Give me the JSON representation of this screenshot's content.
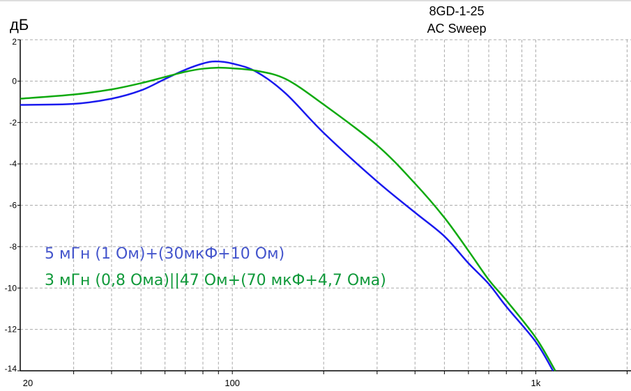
{
  "chart_data": {
    "type": "line",
    "title": "8GD-1-25",
    "subtitle": "AC Sweep",
    "ylabel": "дБ",
    "xlabel": "",
    "xscale": "log",
    "xlim": [
      20,
      2060
    ],
    "ylim": [
      -14,
      2
    ],
    "grid": true,
    "x_ticks": [
      {
        "v": 20,
        "label": "20"
      },
      {
        "v": 100,
        "label": "100"
      },
      {
        "v": 1000,
        "label": "1k"
      }
    ],
    "y_ticks": [
      2,
      0,
      -2,
      -4,
      -6,
      -8,
      -10,
      -12,
      -14
    ],
    "series": [
      {
        "name": "5 мГн (1 Ом)+(30мкФ+10 Ом)",
        "color": "#1a1aee",
        "label_color": "#4455cc",
        "x": [
          20,
          30,
          40,
          50,
          60,
          70,
          80,
          88,
          100,
          120,
          150,
          200,
          300,
          400,
          500,
          600,
          700,
          800,
          1000,
          1140
        ],
        "y": [
          -1.15,
          -1.1,
          -0.85,
          -0.45,
          0.1,
          0.55,
          0.85,
          0.95,
          0.85,
          0.45,
          -0.6,
          -2.5,
          -4.85,
          -6.35,
          -7.5,
          -8.8,
          -9.8,
          -10.9,
          -12.6,
          -14
        ]
      },
      {
        "name": "3 мГн (0,8 Ома)||47 Ом+(70 мкФ+4,7 Ома)",
        "color": "#10aa10",
        "label_color": "#10993a",
        "x": [
          20,
          30,
          40,
          50,
          60,
          70,
          80,
          90,
          100,
          120,
          150,
          200,
          300,
          400,
          500,
          600,
          700,
          800,
          1000,
          1160
        ],
        "y": [
          -0.85,
          -0.65,
          -0.4,
          -0.1,
          0.2,
          0.45,
          0.6,
          0.65,
          0.62,
          0.5,
          0.1,
          -1.13,
          -3.1,
          -4.95,
          -6.6,
          -8.2,
          -9.6,
          -10.6,
          -12.4,
          -14
        ]
      }
    ]
  }
}
